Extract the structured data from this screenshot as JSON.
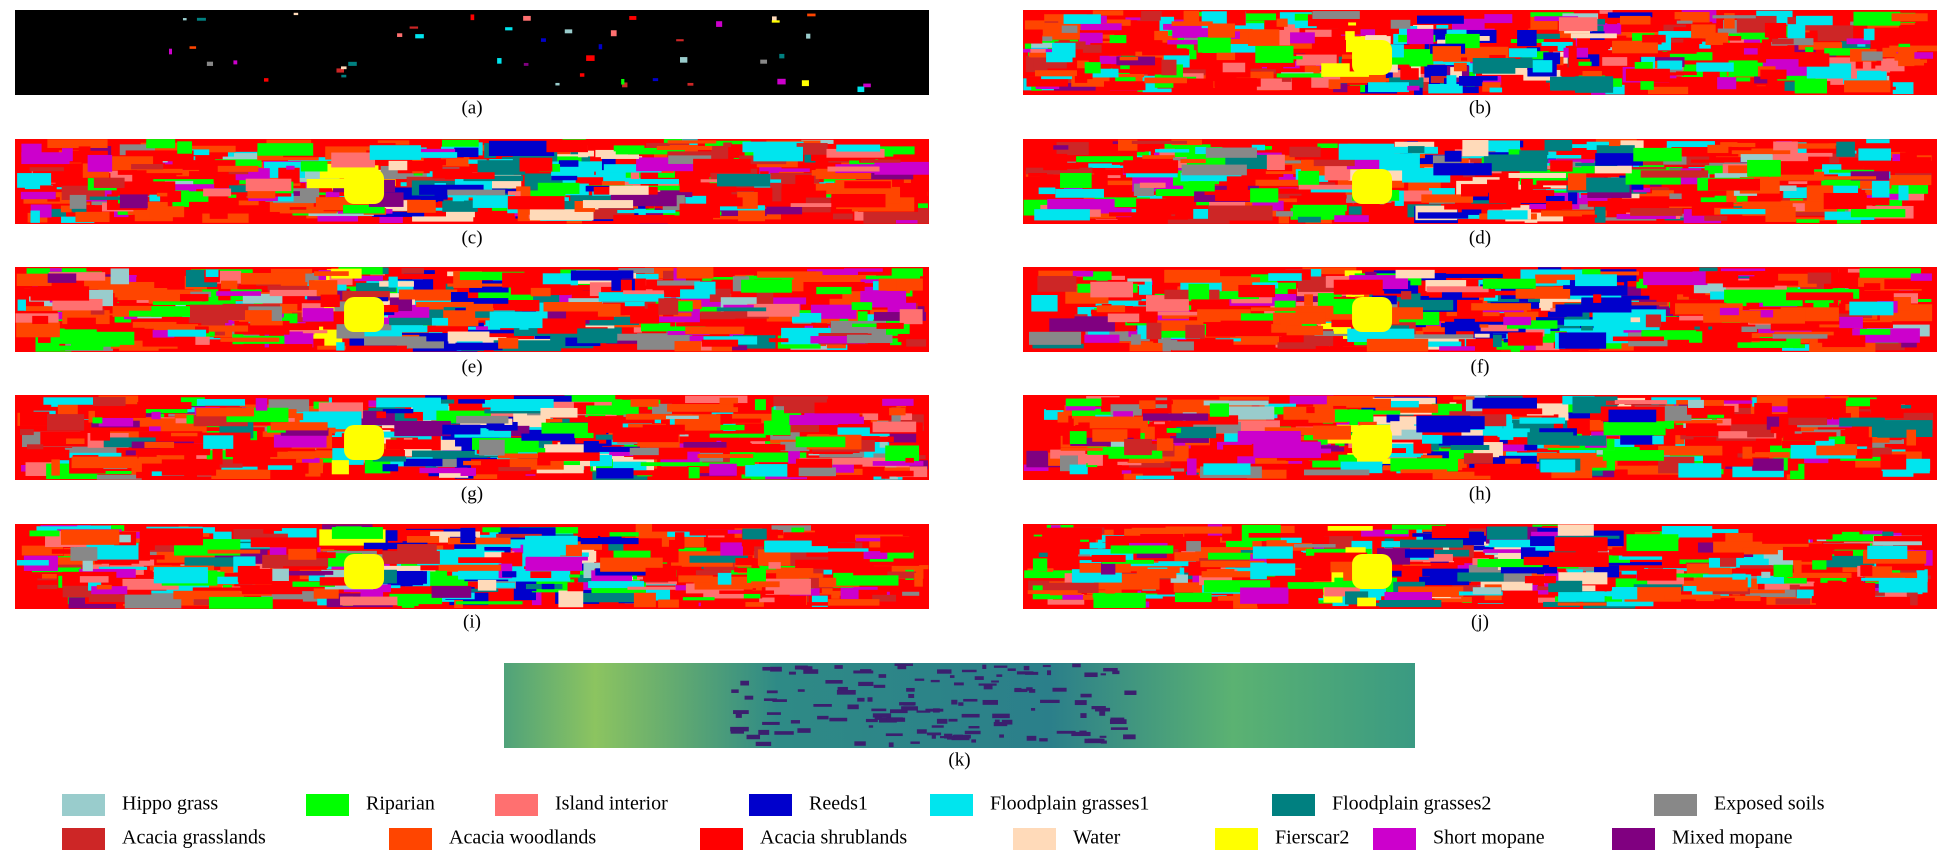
{
  "panels": [
    {
      "label": "(a)"
    },
    {
      "label": "(b)"
    },
    {
      "label": "(c)"
    },
    {
      "label": "(d)"
    },
    {
      "label": "(e)"
    },
    {
      "label": "(f)"
    },
    {
      "label": "(g)"
    },
    {
      "label": "(h)"
    },
    {
      "label": "(i)"
    },
    {
      "label": "(j)"
    },
    {
      "label": "(k)"
    }
  ],
  "legend": [
    {
      "name": "Hippo grass",
      "color": "#99cccc"
    },
    {
      "name": "Riparian",
      "color": "#00ff00"
    },
    {
      "name": "Island interior",
      "color": "#ff7070"
    },
    {
      "name": "Reeds1",
      "color": "#0000cc"
    },
    {
      "name": "Floodplain grasses1",
      "color": "#00e5ee"
    },
    {
      "name": "Floodplain grasses2",
      "color": "#008080"
    },
    {
      "name": "Exposed soils",
      "color": "#888888"
    },
    {
      "name": "Acacia grasslands",
      "color": "#cd2626"
    },
    {
      "name": "Acacia woodlands",
      "color": "#ff4500"
    },
    {
      "name": "Acacia shrublands",
      "color": "#ff0000"
    },
    {
      "name": "Water",
      "color": "#ffdab9"
    },
    {
      "name": "Fierscar2",
      "color": "#ffff00"
    },
    {
      "name": "Short mopane",
      "color": "#cc00cc"
    },
    {
      "name": "Mixed mopane",
      "color": "#800080"
    }
  ]
}
